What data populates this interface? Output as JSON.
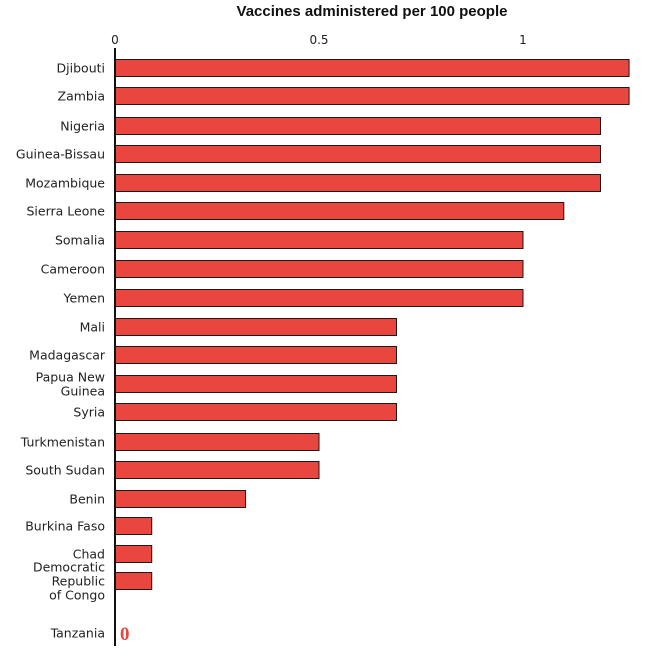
{
  "chart_data": {
    "type": "bar",
    "orientation": "horizontal",
    "title": "Vaccines administered per 100 people",
    "x_ticks": [
      {
        "value": 0,
        "label": "0"
      },
      {
        "value": 0.5,
        "label": "0.5"
      },
      {
        "value": 1,
        "label": "1"
      }
    ],
    "xlim": [
      0,
      1.3
    ],
    "grid": false,
    "bar_color": "#e8463f",
    "zero_label_color": "#e8463f",
    "categories": [
      {
        "name": "Djibouti",
        "lines": [
          "Djibouti"
        ],
        "value": 1.26
      },
      {
        "name": "Zambia",
        "lines": [
          "Zambia"
        ],
        "value": 1.26
      },
      {
        "name": "Nigeria",
        "lines": [
          "Nigeria"
        ],
        "value": 1.19
      },
      {
        "name": "Guinea-Bissau",
        "lines": [
          "Guinea-Bissau"
        ],
        "value": 1.19
      },
      {
        "name": "Mozambique",
        "lines": [
          "Mozambique"
        ],
        "value": 1.19
      },
      {
        "name": "Sierra Leone",
        "lines": [
          "Sierra Leone"
        ],
        "value": 1.1
      },
      {
        "name": "Somalia",
        "lines": [
          "Somalia"
        ],
        "value": 1.0
      },
      {
        "name": "Cameroon",
        "lines": [
          "Cameroon"
        ],
        "value": 1.0
      },
      {
        "name": "Yemen",
        "lines": [
          "Yemen"
        ],
        "value": 1.0
      },
      {
        "name": "Mali",
        "lines": [
          "Mali"
        ],
        "value": 0.69
      },
      {
        "name": "Madagascar",
        "lines": [
          "Madagascar"
        ],
        "value": 0.69
      },
      {
        "name": "Papua New Guinea",
        "lines": [
          "Papua New",
          "Guinea"
        ],
        "value": 0.69
      },
      {
        "name": "Syria",
        "lines": [
          "Syria"
        ],
        "value": 0.69
      },
      {
        "name": "Turkmenistan",
        "lines": [
          "Turkmenistan"
        ],
        "value": 0.5
      },
      {
        "name": "South Sudan",
        "lines": [
          "South Sudan"
        ],
        "value": 0.5
      },
      {
        "name": "Benin",
        "lines": [
          "Benin"
        ],
        "value": 0.32
      },
      {
        "name": "Burkina Faso",
        "lines": [
          "Burkina Faso"
        ],
        "value": 0.09
      },
      {
        "name": "Chad",
        "lines": [
          "Chad"
        ],
        "value": 0.09
      },
      {
        "name": "Democratic Republic of Congo",
        "lines": [
          "Democratic",
          "Republic",
          "of Congo"
        ],
        "value": 0.09
      },
      {
        "name": "Tanzania",
        "lines": [
          "Tanzania"
        ],
        "value": 0,
        "value_label": "0"
      }
    ]
  }
}
